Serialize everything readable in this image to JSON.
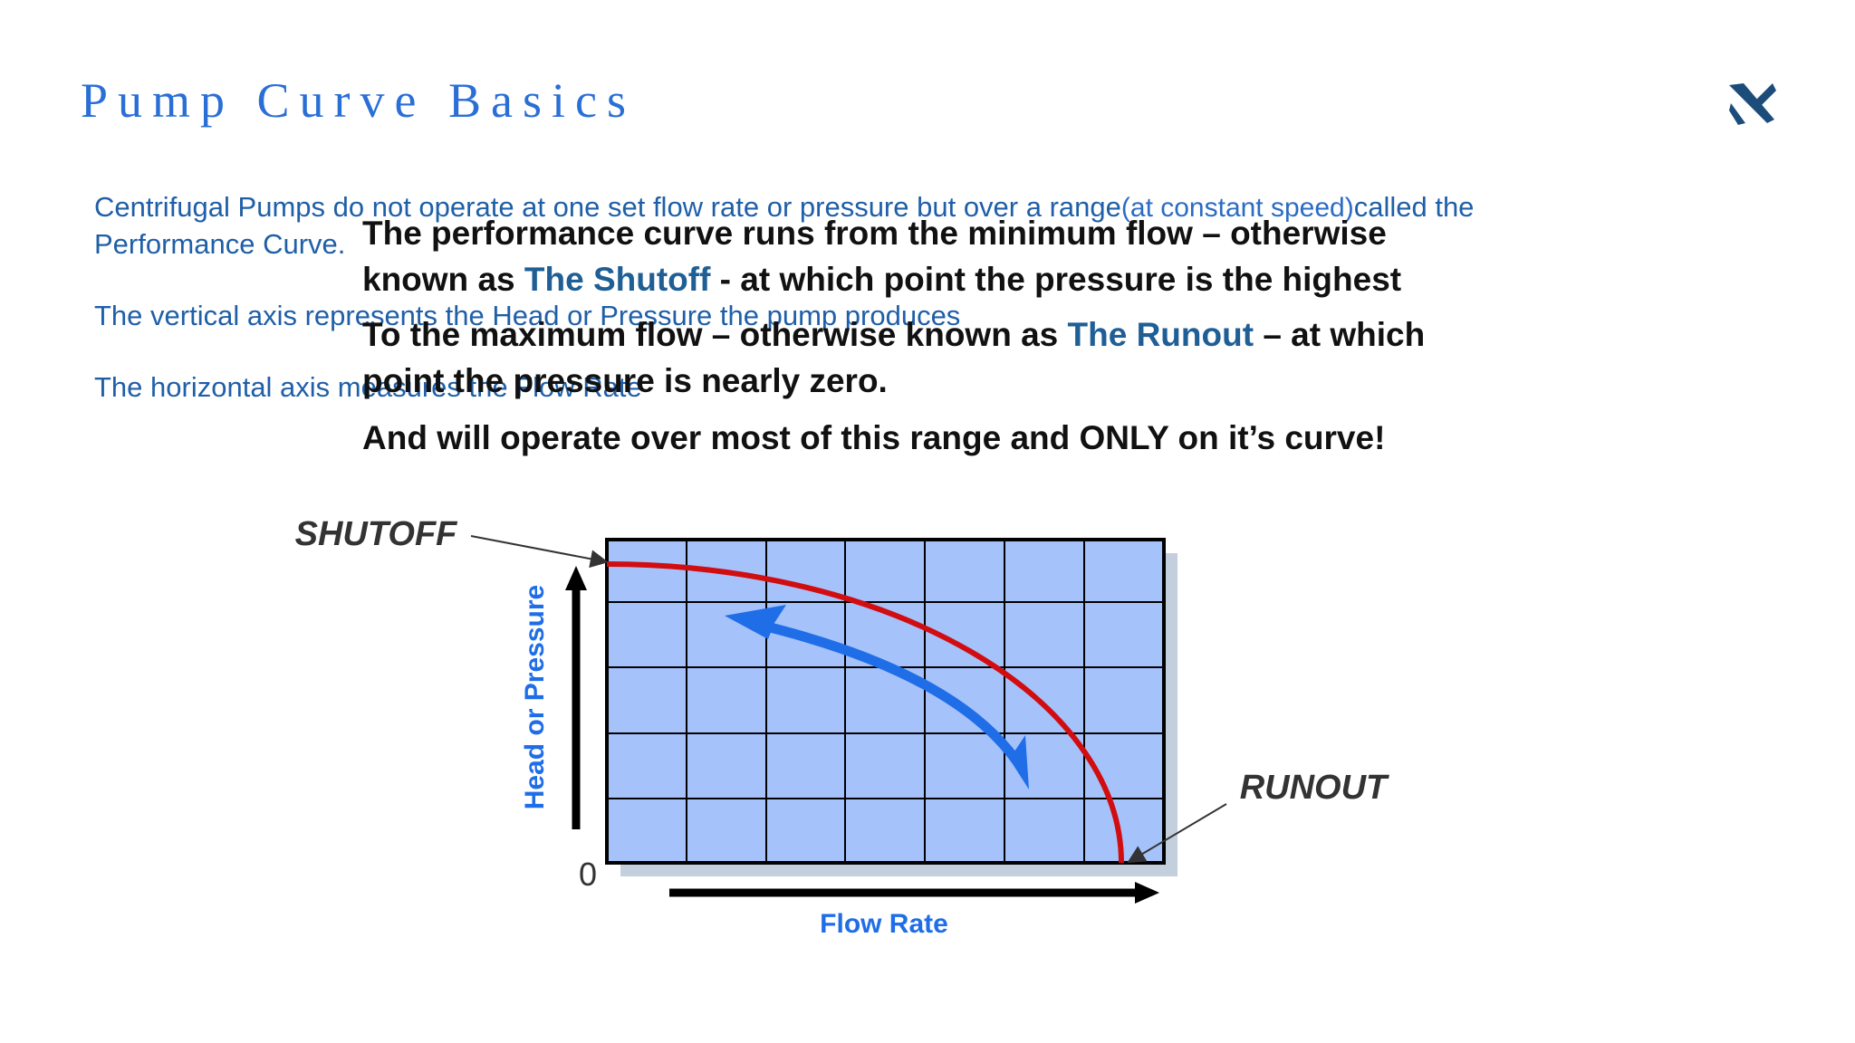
{
  "header": {
    "title": "Pump Curve Basics"
  },
  "background_text": {
    "line_1": [
      "Centrifugal Pumps do not operate at one set flow rate or pressure but over a range",
      "(at constant speed)",
      "called the Performance Curve."
    ],
    "line_2": "The vertical axis represents the Head or Pressure the pump produces",
    "line_3": "The horizontal axis measures the Flow Rate"
  },
  "overlay_text": {
    "paragraph_1": [
      "The performance curve runs from the minimum flow – otherwise known as ",
      "The Shutoff",
      " - at which point the pressure is the highest"
    ],
    "paragraph_2": [
      "To the maximum flow – otherwise known as ",
      "The Runout",
      " – at which point the pressure is nearly zero."
    ],
    "paragraph_3": "And will operate over most of this range and ONLY on it’s curve!"
  },
  "diagram": {
    "shutoff_label": "SHUTOFF",
    "runout_label": "RUNOUT",
    "y_axis_label": "Head or Pressure",
    "x_axis_label": "Flow Rate",
    "origin_label": "0"
  }
}
